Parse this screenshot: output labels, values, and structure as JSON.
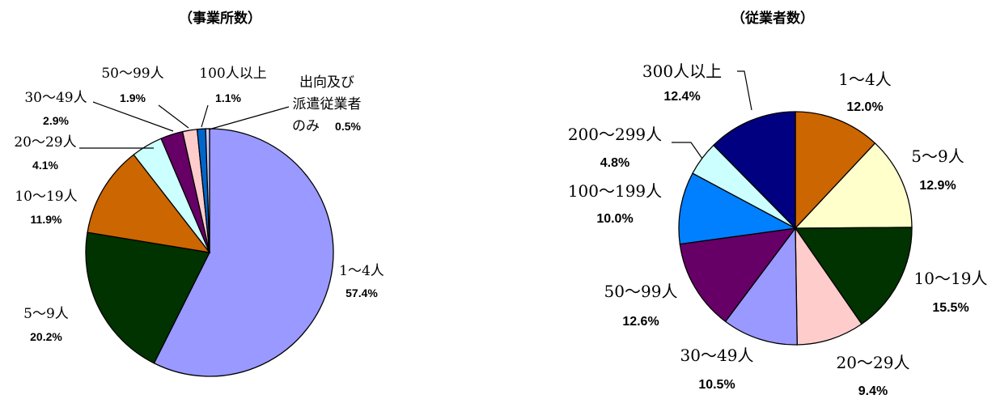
{
  "chart_data": [
    {
      "type": "pie",
      "title": "（事業所数）",
      "unit": "%",
      "slices": [
        {
          "label": "1～4人",
          "value": 57.4,
          "pct_label": "57.4%",
          "color": "#9999ff"
        },
        {
          "label": "5～9人",
          "value": 20.2,
          "pct_label": "20.2%",
          "color": "#003300"
        },
        {
          "label": "10～19人",
          "value": 11.9,
          "pct_label": "11.9%",
          "color": "#cc6600"
        },
        {
          "label": "20～29人",
          "value": 4.1,
          "pct_label": "4.1%",
          "color": "#ccffff"
        },
        {
          "label": "30～49人",
          "value": 2.9,
          "pct_label": "2.9%",
          "color": "#660066"
        },
        {
          "label": "50～99人",
          "value": 1.9,
          "pct_label": "1.9%",
          "color": "#ffcccc"
        },
        {
          "label": "100人以上",
          "value": 1.1,
          "pct_label": "1.1%",
          "color": "#0066cc"
        },
        {
          "label": "出向及び派遣従業者のみ",
          "label_lines": [
            "出向及び",
            "派遣従業者",
            "のみ"
          ],
          "value": 0.5,
          "pct_label": "0.5%",
          "color": "#ccccff"
        }
      ]
    },
    {
      "type": "pie",
      "title": "（従業者数）",
      "unit": "%",
      "slices": [
        {
          "label": "1～4人",
          "value": 12.0,
          "pct_label": "12.0%",
          "color": "#cc6600"
        },
        {
          "label": "5～9人",
          "value": 12.9,
          "pct_label": "12.9%",
          "color": "#ffffcc"
        },
        {
          "label": "10～19人",
          "value": 15.5,
          "pct_label": "15.5%",
          "color": "#003300"
        },
        {
          "label": "20～29人",
          "value": 9.4,
          "pct_label": "9.4%",
          "color": "#ffcccc"
        },
        {
          "label": "30～49人",
          "value": 10.5,
          "pct_label": "10.5%",
          "color": "#9999ff"
        },
        {
          "label": "50～99人",
          "value": 12.6,
          "pct_label": "12.6%",
          "color": "#660066"
        },
        {
          "label": "100～199人",
          "value": 10.0,
          "pct_label": "10.0%",
          "color": "#0080ff"
        },
        {
          "label": "200～299人",
          "value": 4.8,
          "pct_label": "4.8%",
          "color": "#ccffff"
        },
        {
          "label": "300人以上",
          "value": 12.4,
          "pct_label": "12.4%",
          "color": "#000080"
        }
      ]
    }
  ]
}
